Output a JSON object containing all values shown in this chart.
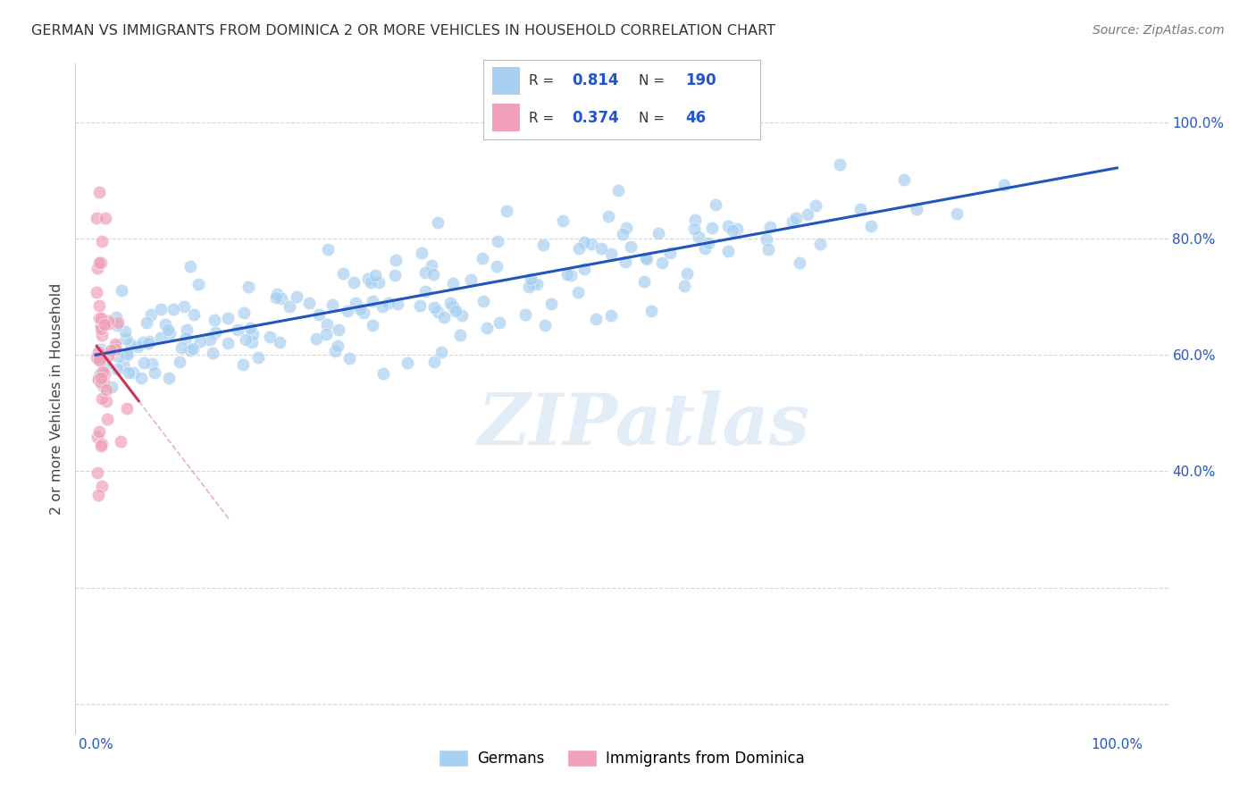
{
  "title": "GERMAN VS IMMIGRANTS FROM DOMINICA 2 OR MORE VEHICLES IN HOUSEHOLD CORRELATION CHART",
  "source": "Source: ZipAtlas.com",
  "ylabel": "2 or more Vehicles in Household",
  "watermark": "ZIPatlas",
  "legend_blue_r": "0.814",
  "legend_blue_n": "190",
  "legend_pink_r": "0.374",
  "legend_pink_n": "46",
  "blue_color": "#a8cff0",
  "blue_line_color": "#2255bb",
  "pink_color": "#f0a0b8",
  "pink_line_color": "#cc3355",
  "pink_dashed_color": "#e0a0b0",
  "legend_text_color": "#2255cc",
  "title_color": "#333333",
  "grid_color": "#cccccc",
  "background_color": "#ffffff",
  "ytick_vals": [
    0.0,
    0.2,
    0.4,
    0.6,
    0.8,
    1.0
  ],
  "ytick_labels": [
    "",
    "",
    "40.0%",
    "60.0%",
    "80.0%",
    "100.0%"
  ],
  "xtick_vals": [
    0.0,
    0.2,
    0.4,
    0.6,
    0.8,
    1.0
  ],
  "xtick_labels": [
    "0.0%",
    "",
    "",
    "",
    "",
    "100.0%"
  ],
  "xlim": [
    -0.02,
    1.05
  ],
  "ylim": [
    -0.05,
    1.1
  ],
  "blue_seed": 42,
  "pink_seed": 7,
  "marker_size": 110,
  "marker_alpha": 0.7
}
